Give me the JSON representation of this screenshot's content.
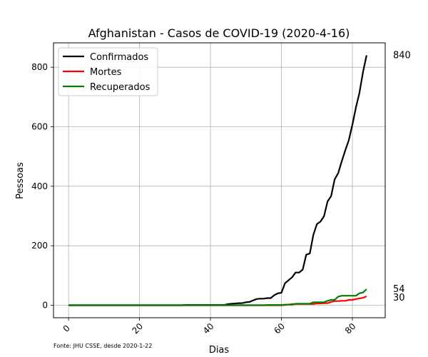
{
  "chart_data": {
    "type": "line",
    "title": "Afghanistan - Casos de COVID-19 (2020-4-16)",
    "xlabel": "Dias",
    "ylabel": "Pessoas",
    "xlim": [
      -4.25,
      89.25
    ],
    "ylim": [
      -42,
      882
    ],
    "xticks": [
      0,
      20,
      40,
      60,
      80
    ],
    "yticks": [
      0,
      200,
      400,
      600,
      800
    ],
    "grid": true,
    "legend_position": "upper-left",
    "source_note": "Fonte: JHU CSSE, desde 2020-1-22",
    "series": [
      {
        "name": "Confirmados",
        "color": "#000000",
        "end_label": "840",
        "points": [
          [
            0,
            0
          ],
          [
            32,
            0
          ],
          [
            33,
            1
          ],
          [
            44,
            1
          ],
          [
            45,
            4
          ],
          [
            48,
            7
          ],
          [
            49,
            7
          ],
          [
            50,
            10
          ],
          [
            51,
            11
          ],
          [
            52,
            16
          ],
          [
            53,
            21
          ],
          [
            54,
            22
          ],
          [
            55,
            22
          ],
          [
            56,
            24
          ],
          [
            57,
            24
          ],
          [
            58,
            34
          ],
          [
            59,
            40
          ],
          [
            60,
            42
          ],
          [
            61,
            74
          ],
          [
            62,
            84
          ],
          [
            63,
            94
          ],
          [
            64,
            110
          ],
          [
            65,
            110
          ],
          [
            66,
            120
          ],
          [
            67,
            170
          ],
          [
            68,
            174
          ],
          [
            69,
            237
          ],
          [
            70,
            273
          ],
          [
            71,
            281
          ],
          [
            72,
            299
          ],
          [
            73,
            349
          ],
          [
            74,
            367
          ],
          [
            75,
            423
          ],
          [
            76,
            444
          ],
          [
            77,
            484
          ],
          [
            78,
            521
          ],
          [
            79,
            555
          ],
          [
            80,
            607
          ],
          [
            81,
            665
          ],
          [
            82,
            714
          ],
          [
            83,
            784
          ],
          [
            84,
            840
          ]
        ]
      },
      {
        "name": "Mortes",
        "color": "#ff0000",
        "end_label": "30",
        "points": [
          [
            0,
            0
          ],
          [
            60,
            0
          ],
          [
            61,
            1
          ],
          [
            62,
            2
          ],
          [
            63,
            4
          ],
          [
            67,
            4
          ],
          [
            68,
            4
          ],
          [
            69,
            4
          ],
          [
            70,
            6
          ],
          [
            71,
            6
          ],
          [
            72,
            7
          ],
          [
            73,
            7
          ],
          [
            74,
            11
          ],
          [
            75,
            14
          ],
          [
            76,
            14
          ],
          [
            77,
            15
          ],
          [
            78,
            15
          ],
          [
            79,
            18
          ],
          [
            80,
            18
          ],
          [
            81,
            21
          ],
          [
            82,
            23
          ],
          [
            83,
            25
          ],
          [
            84,
            30
          ]
        ]
      },
      {
        "name": "Recuperados",
        "color": "#008000",
        "end_label": "54",
        "points": [
          [
            0,
            0
          ],
          [
            55,
            0
          ],
          [
            56,
            1
          ],
          [
            60,
            1
          ],
          [
            61,
            2
          ],
          [
            62,
            2
          ],
          [
            63,
            2
          ],
          [
            64,
            5
          ],
          [
            65,
            5
          ],
          [
            66,
            5
          ],
          [
            67,
            5
          ],
          [
            68,
            5
          ],
          [
            69,
            10
          ],
          [
            70,
            10
          ],
          [
            71,
            10
          ],
          [
            72,
            10
          ],
          [
            73,
            15
          ],
          [
            74,
            18
          ],
          [
            75,
            18
          ],
          [
            76,
            29
          ],
          [
            77,
            32
          ],
          [
            78,
            32
          ],
          [
            79,
            32
          ],
          [
            80,
            32
          ],
          [
            81,
            32
          ],
          [
            82,
            40
          ],
          [
            83,
            43
          ],
          [
            84,
            54
          ]
        ]
      }
    ]
  }
}
